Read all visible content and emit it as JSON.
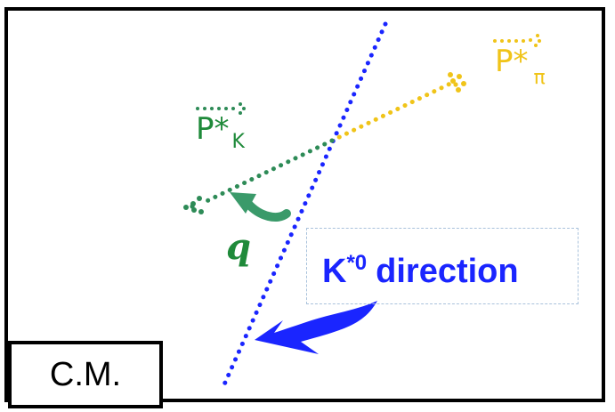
{
  "labels": {
    "p_star_k": {
      "base": "P*",
      "sub": "K"
    },
    "p_star_pi": {
      "base": "P*",
      "sub": "π"
    },
    "angle": "q",
    "k_star_direction": {
      "main_prefix": "K",
      "sup": "*0",
      "main_suffix": "direction"
    },
    "frame": "C.M."
  },
  "colors": {
    "k_vector": "#2e8b57",
    "pi_vector": "#f0c419",
    "direction_line": "#1a25ff",
    "angle_arrow": "#3a9a6a",
    "frame_border": "#000000"
  },
  "icons": {
    "angle_arrow": "curved-arrow-icon",
    "direction_arrow": "curved-arrow-icon"
  }
}
